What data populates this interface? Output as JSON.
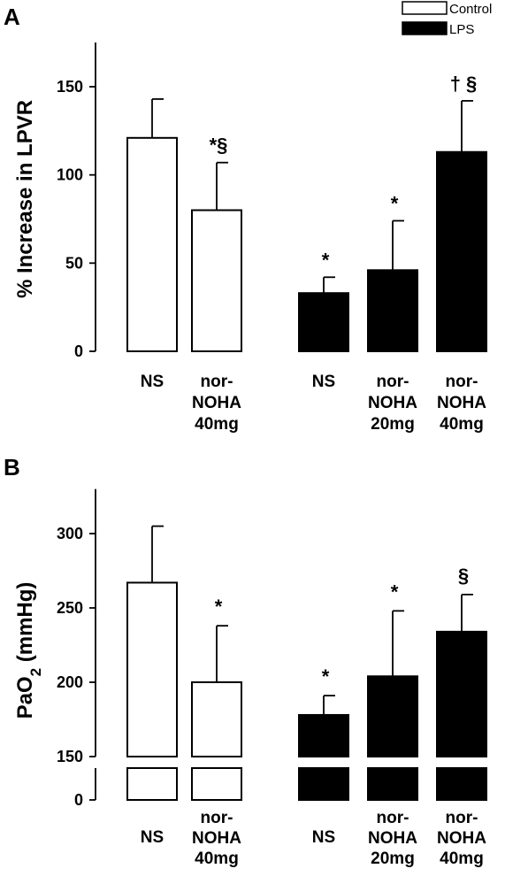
{
  "chart_data": [
    {
      "type": "bar",
      "panel_label": "A",
      "ylabel": "% Increase in LPVR",
      "ylim": [
        0,
        175
      ],
      "yticks": [
        0,
        50,
        100,
        150
      ],
      "legend": {
        "position": "top-right",
        "entries": [
          {
            "label": "Control",
            "color": "#ffffff"
          },
          {
            "label": "LPS",
            "color": "#000000"
          }
        ]
      },
      "bars": [
        {
          "category": [
            "NS"
          ],
          "group": "Control",
          "value": 121,
          "error": 22,
          "annotation": ""
        },
        {
          "category": [
            "nor-",
            "NOHA",
            "40mg"
          ],
          "group": "Control",
          "value": 80,
          "error": 27,
          "annotation": "*§"
        },
        {
          "category": [
            "NS"
          ],
          "group": "LPS",
          "value": 33,
          "error": 9,
          "annotation": "*"
        },
        {
          "category": [
            "nor-",
            "NOHA",
            "20mg"
          ],
          "group": "LPS",
          "value": 46,
          "error": 28,
          "annotation": "*"
        },
        {
          "category": [
            "nor-",
            "NOHA",
            "40mg"
          ],
          "group": "LPS",
          "value": 113,
          "error": 29,
          "annotation": "† §"
        }
      ]
    },
    {
      "type": "bar",
      "panel_label": "B",
      "ylabel": "PaO2 (mmHg)",
      "ylabel_main": "PaO",
      "ylabel_sub": "2",
      "ylabel_rest": " (mmHg)",
      "ylim": [
        0,
        330
      ],
      "axis_break": [
        0,
        150
      ],
      "yticks": [
        0,
        150,
        200,
        250,
        300
      ],
      "bars": [
        {
          "category": [
            "NS"
          ],
          "group": "Control",
          "value": 267,
          "error": 38,
          "annotation": ""
        },
        {
          "category": [
            "nor-",
            "NOHA",
            "40mg"
          ],
          "group": "Control",
          "value": 200,
          "error": 38,
          "annotation": "*"
        },
        {
          "category": [
            "NS"
          ],
          "group": "LPS",
          "value": 178,
          "error": 13,
          "annotation": "*"
        },
        {
          "category": [
            "nor-",
            "NOHA",
            "20mg"
          ],
          "group": "LPS",
          "value": 204,
          "error": 44,
          "annotation": "*"
        },
        {
          "category": [
            "nor-",
            "NOHA",
            "40mg"
          ],
          "group": "LPS",
          "value": 234,
          "error": 25,
          "annotation": "§"
        }
      ]
    }
  ]
}
